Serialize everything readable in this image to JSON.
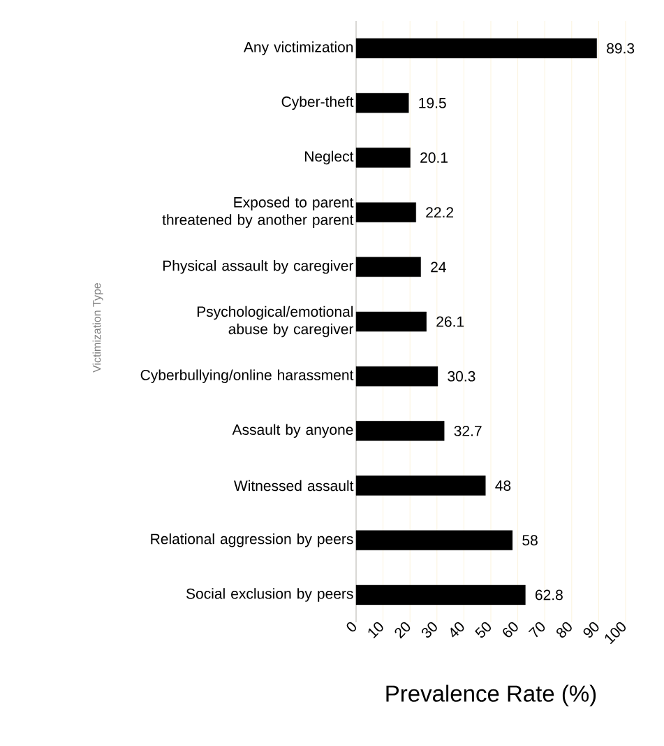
{
  "chart_data": {
    "type": "bar",
    "orientation": "horizontal",
    "categories": [
      "Any victimization",
      "Cyber-theft",
      "Neglect",
      "Exposed to parent threatened by another parent",
      "Physical assault by caregiver",
      "Psychological/emotional abuse by caregiver",
      "Cyberbullying/online harassment",
      "Assault by anyone",
      "Witnessed assault",
      "Relational aggression by peers",
      "Social exclusion by peers"
    ],
    "values": [
      89.3,
      19.5,
      20.1,
      22.2,
      24,
      26.1,
      30.3,
      32.7,
      48,
      58,
      62.8
    ],
    "color": "#000000",
    "xlim": [
      0,
      100
    ],
    "xticks": [
      0,
      10,
      20,
      30,
      40,
      50,
      60,
      70,
      80,
      90,
      100
    ],
    "xlabel": "Prevalence Rate (%)",
    "ylabel": "Victimization Type",
    "data_labels": true,
    "grid": "x"
  }
}
